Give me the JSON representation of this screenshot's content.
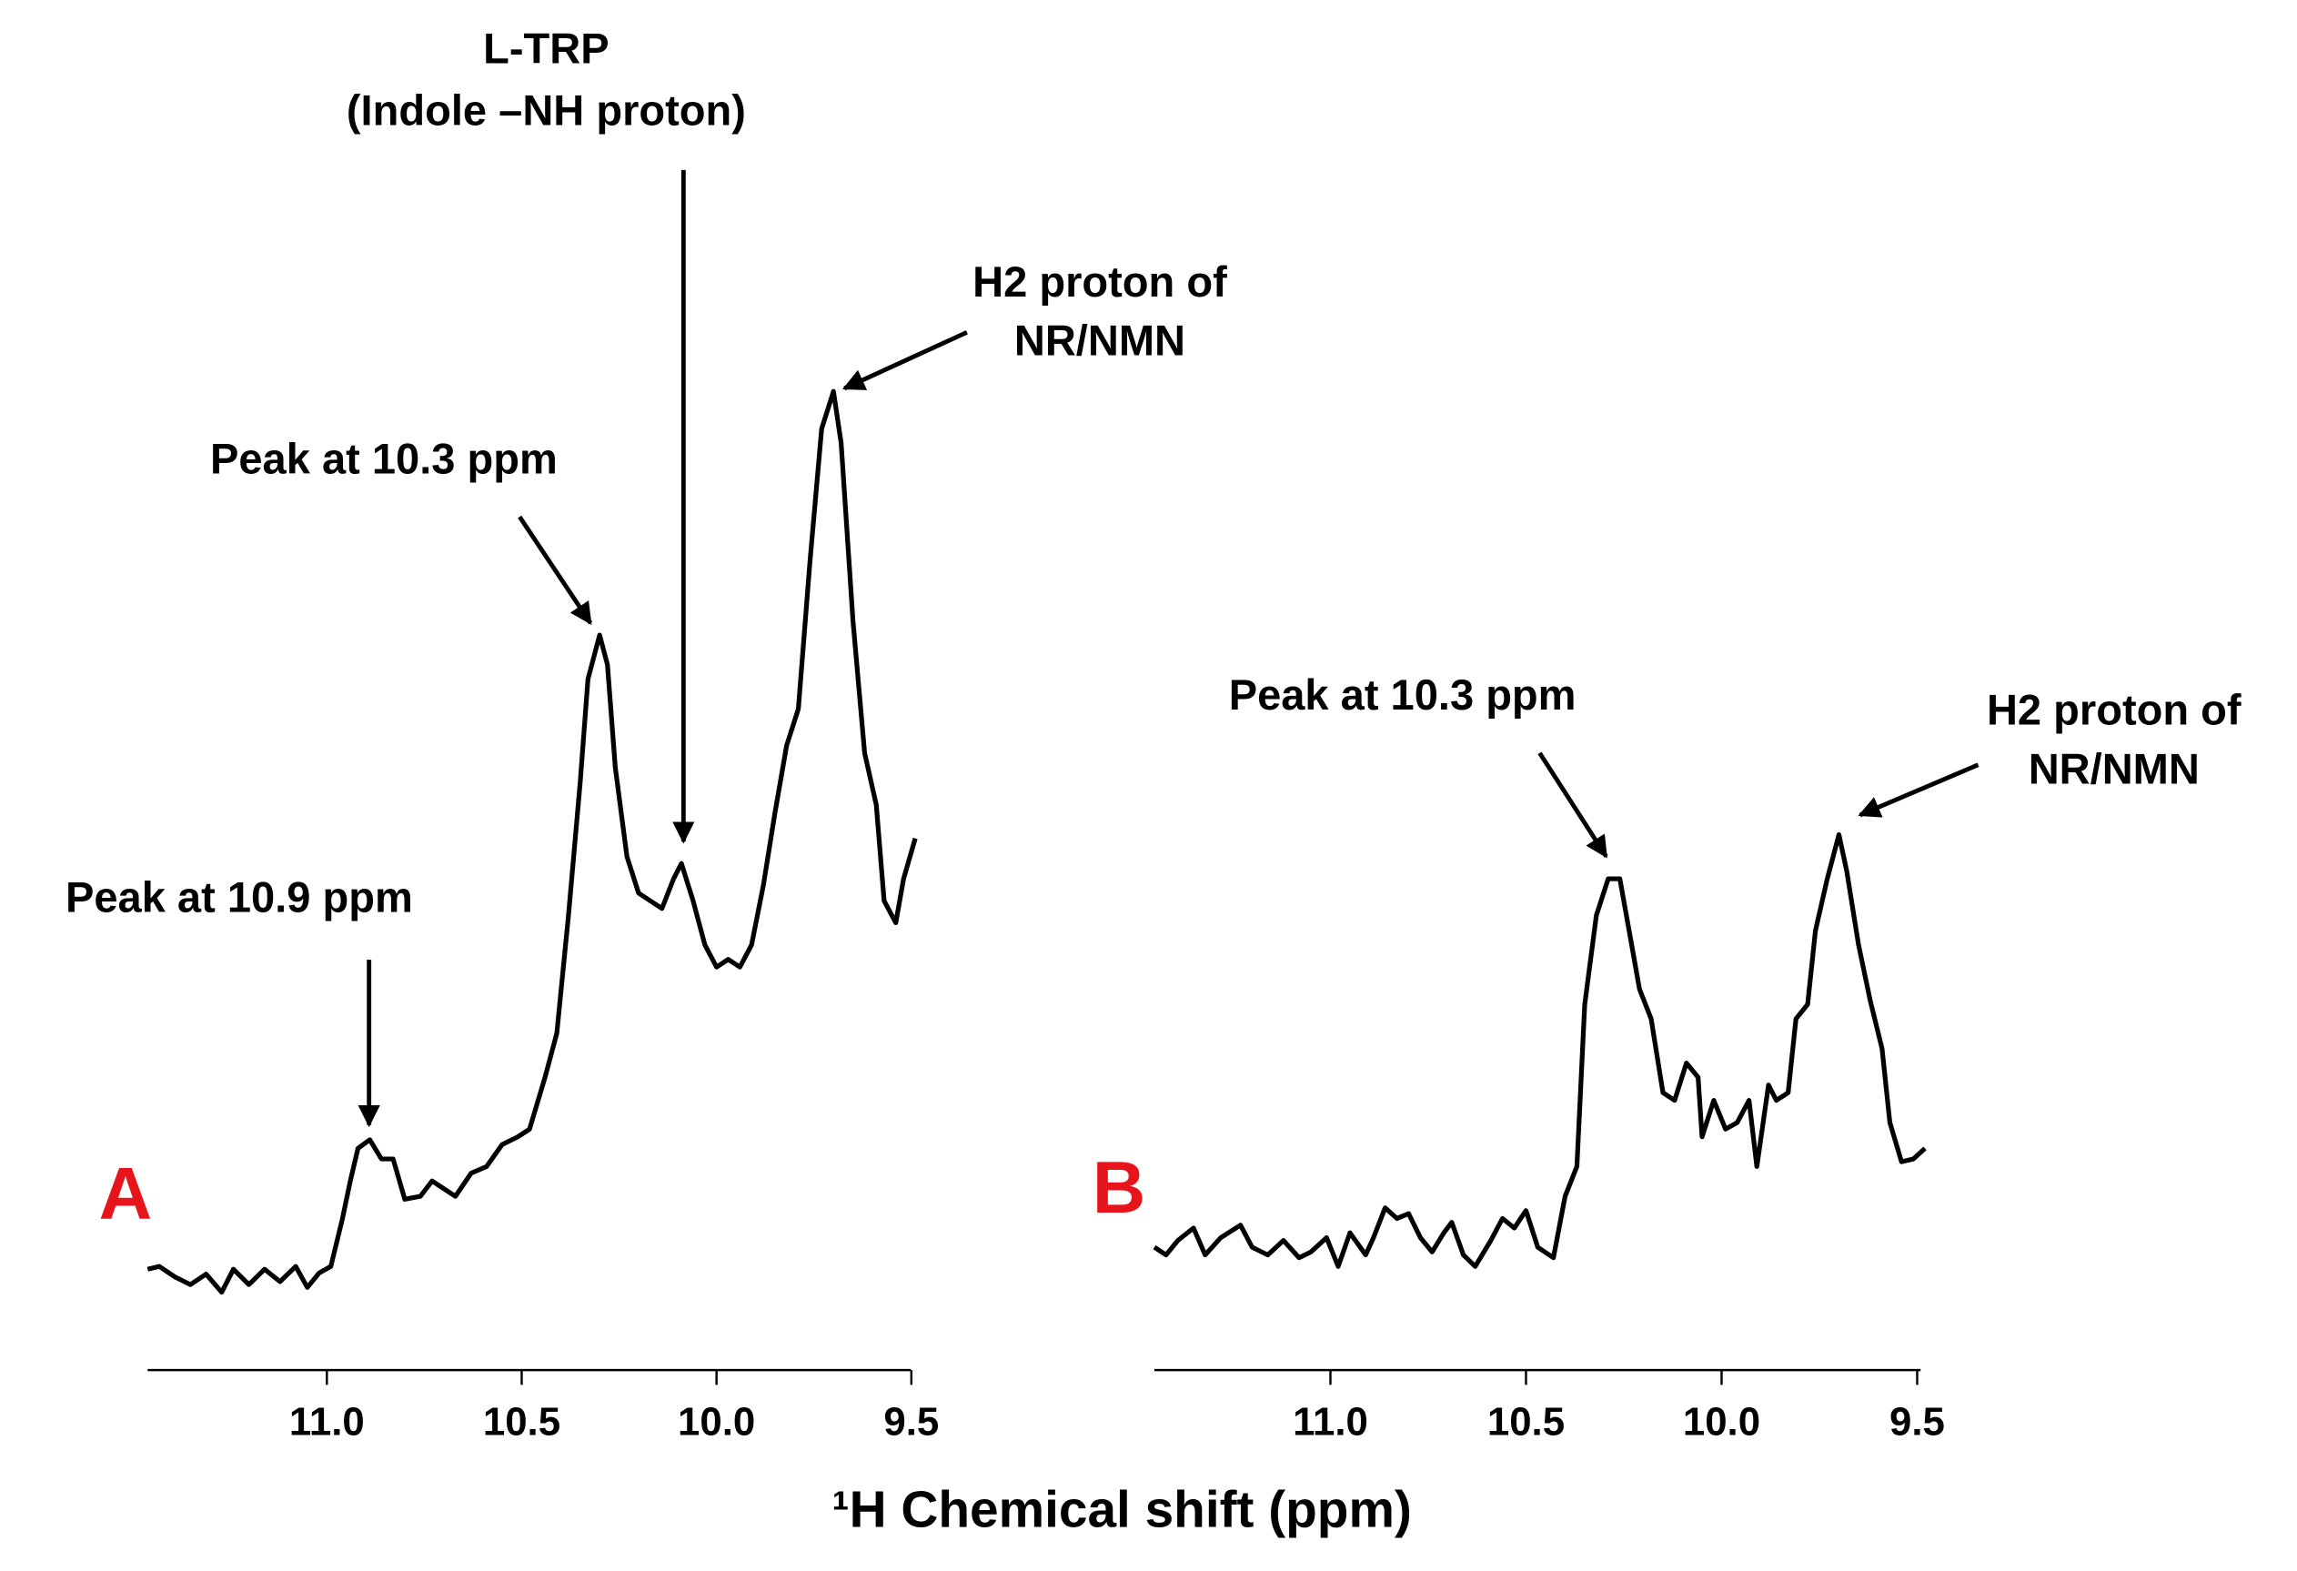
{
  "chart_data": [
    {
      "type": "line",
      "panel": "A",
      "xlim": [
        11.46,
        9.49
      ],
      "ylim": [
        0,
        100
      ],
      "xticks": [
        {
          "value": 11,
          "label": "11.0"
        },
        10.5,
        {
          "value": 10,
          "label": "10.0"
        },
        9.5
      ],
      "annotations": [
        {
          "lines": [
            "L-TRP",
            "(Indole –NH proton)"
          ]
        },
        {
          "lines": [
            "H2 proton of",
            "NR/NMN"
          ]
        },
        {
          "lines": [
            "Peak at 10.3 ppm"
          ]
        },
        {
          "lines": [
            "Peak at 10.9 ppm"
          ]
        }
      ],
      "series": [
        {
          "color": "#000000",
          "x": [
            11.46,
            11.43,
            11.39,
            11.35,
            11.31,
            11.27,
            11.24,
            11.2,
            11.16,
            11.12,
            11.08,
            11.05,
            11.02,
            10.99,
            10.96,
            10.94,
            10.92,
            10.89,
            10.86,
            10.83,
            10.8,
            10.76,
            10.73,
            10.7,
            10.67,
            10.63,
            10.59,
            10.55,
            10.51,
            10.48,
            10.44,
            10.41,
            10.38,
            10.35,
            10.33,
            10.3,
            10.28,
            10.26,
            10.23,
            10.2,
            10.17,
            10.14,
            10.11,
            10.09,
            10.06,
            10.03,
            10.0,
            9.97,
            9.94,
            9.91,
            9.88,
            9.85,
            9.82,
            9.79,
            9.76,
            9.73,
            9.7,
            9.68,
            9.65,
            9.62,
            9.59,
            9.57,
            9.54,
            9.52,
            9.49
          ],
          "values": [
            6.2,
            6.5,
            5.4,
            4.6,
            5.7,
            3.8,
            6.2,
            4.6,
            6.2,
            4.9,
            6.5,
            4.3,
            5.8,
            6.5,
            11.5,
            15.4,
            18.8,
            19.7,
            17.7,
            17.7,
            13.5,
            13.8,
            15.4,
            14.6,
            13.8,
            16.2,
            16.9,
            19.2,
            20,
            20.8,
            26.2,
            30.8,
            43.1,
            56.9,
            67.7,
            72.3,
            69.2,
            58.5,
            49.2,
            45.4,
            44.6,
            43.8,
            46.9,
            48.5,
            44.6,
            40,
            37.7,
            38.5,
            37.7,
            40,
            46.2,
            53.8,
            60.8,
            64.6,
            80,
            93.8,
            97.7,
            92.3,
            73.8,
            60,
            54.6,
            44.6,
            42.3,
            46.9,
            51.1
          ]
        }
      ]
    },
    {
      "type": "line",
      "panel": "B",
      "xlim": [
        11.45,
        9.48
      ],
      "ylim": [
        0,
        100
      ],
      "xticks": [
        {
          "value": 11,
          "label": "11.0"
        },
        10.5,
        {
          "value": 10,
          "label": "10.0"
        },
        9.5
      ],
      "annotations": [
        {
          "lines": [
            "Peak at 10.3 ppm"
          ]
        },
        {
          "lines": [
            "H2 proton of",
            "NR/NMN"
          ]
        }
      ],
      "series": [
        {
          "color": "#000000",
          "x": [
            11.45,
            11.42,
            11.39,
            11.35,
            11.32,
            11.28,
            11.23,
            11.2,
            11.16,
            11.12,
            11.08,
            11.05,
            11.01,
            10.98,
            10.95,
            10.91,
            10.89,
            10.86,
            10.83,
            10.8,
            10.77,
            10.74,
            10.71,
            10.69,
            10.66,
            10.63,
            10.59,
            10.56,
            10.53,
            10.5,
            10.47,
            10.43,
            10.4,
            10.37,
            10.35,
            10.32,
            10.29,
            10.26,
            10.23,
            10.21,
            10.18,
            10.15,
            10.12,
            10.09,
            10.06,
            10.05,
            10.02,
            9.99,
            9.96,
            9.93,
            9.91,
            9.88,
            9.86,
            9.83,
            9.81,
            9.78,
            9.76,
            9.73,
            9.7,
            9.68,
            9.65,
            9.62,
            9.59,
            9.57,
            9.54,
            9.51,
            9.48
          ],
          "values": [
            8.5,
            7.7,
            9.2,
            10.5,
            7.7,
            9.5,
            10.8,
            8.5,
            7.7,
            9.2,
            7.4,
            8,
            9.5,
            6.5,
            10,
            7.7,
            9.5,
            12.6,
            11.5,
            12,
            9.5,
            8,
            10,
            11.1,
            7.7,
            6.5,
            9.2,
            11.5,
            10.5,
            12.3,
            8.5,
            7.4,
            13.8,
            16.9,
            33.8,
            43.1,
            46.9,
            46.9,
            40,
            35.4,
            32.3,
            24.6,
            23.8,
            27.7,
            26.2,
            20,
            23.8,
            20.8,
            21.5,
            23.8,
            16.9,
            25.4,
            23.8,
            24.6,
            32.3,
            33.8,
            41.5,
            46.9,
            51.5,
            47.7,
            40,
            34.2,
            29.2,
            21.5,
            17.4,
            17.7,
            18.8
          ]
        }
      ]
    }
  ],
  "x_label": "¹H Chemical shift (ppm)"
}
